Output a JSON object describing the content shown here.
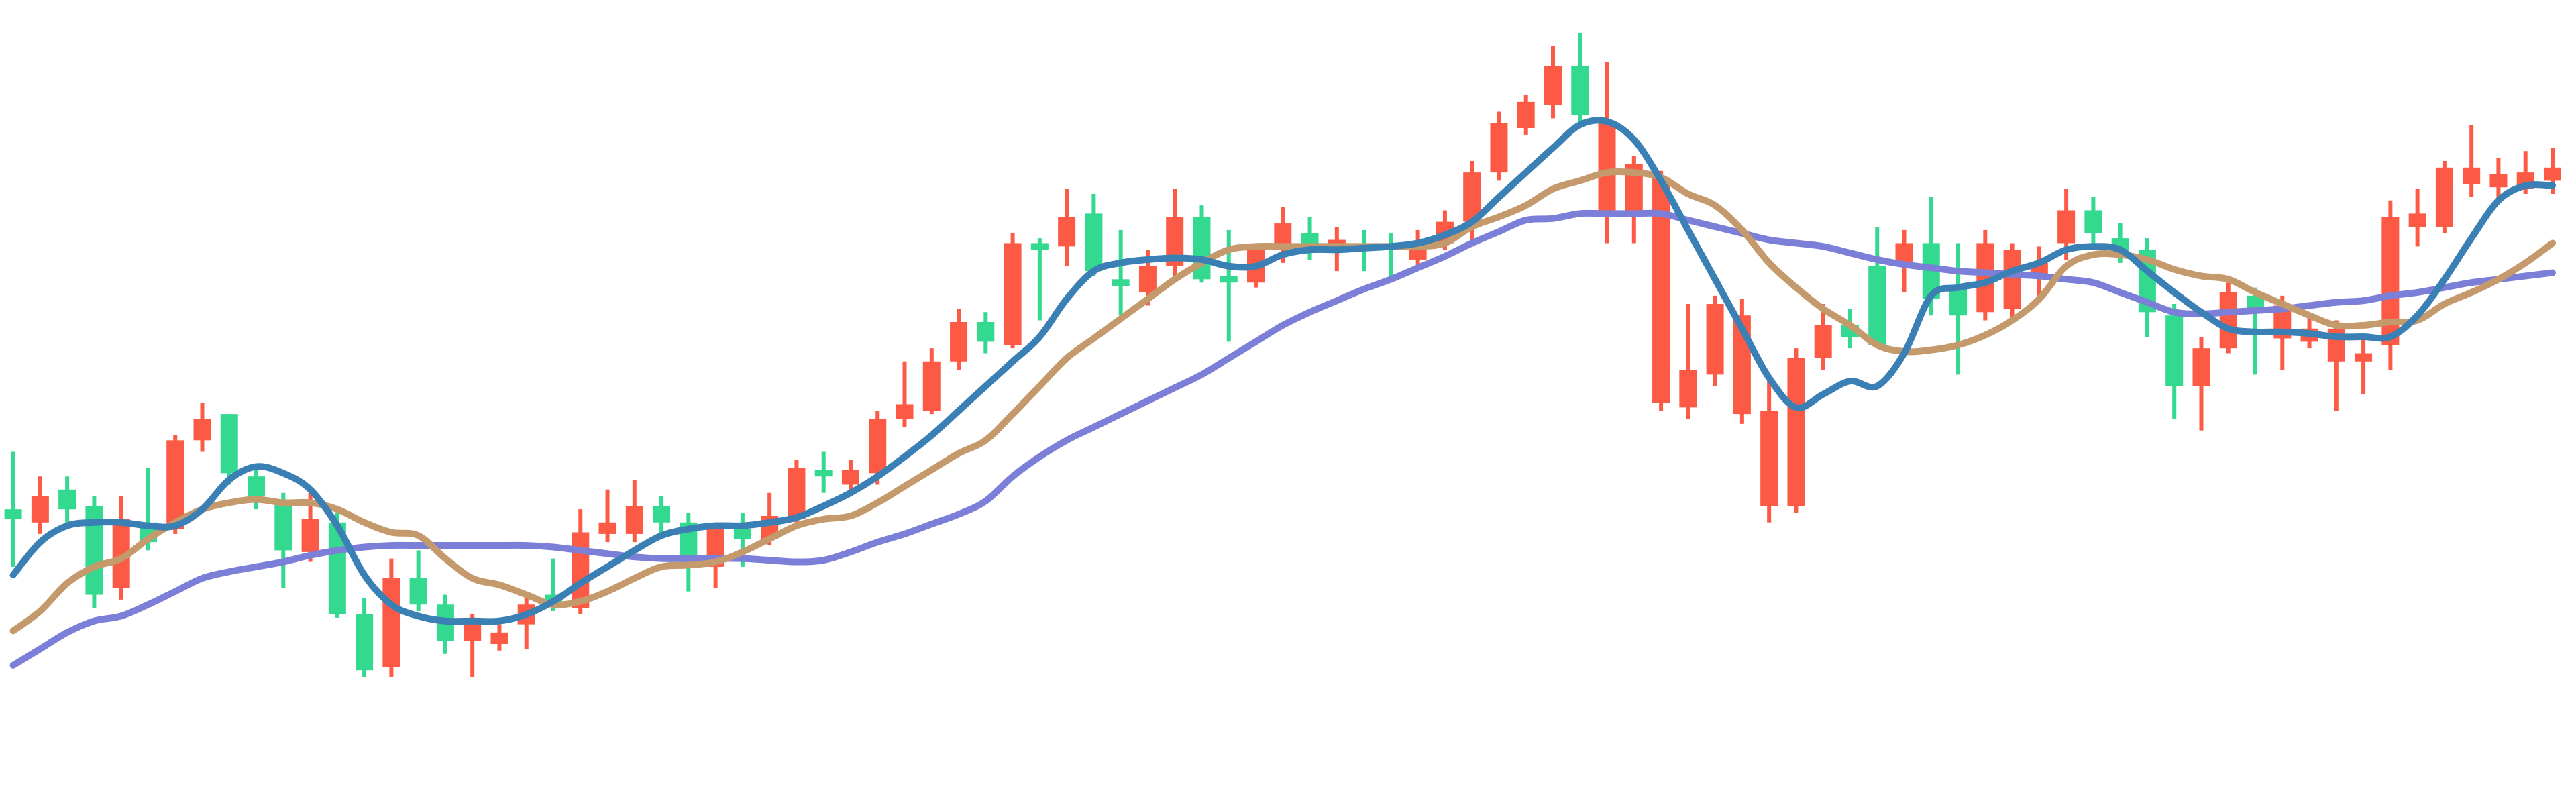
{
  "chart_data": {
    "type": "candlestick",
    "ylim": [
      0,
      490
    ],
    "up_color": "#33d98f",
    "down_color": "#fd5a45",
    "open": [
      174,
      188,
      180,
      128,
      174,
      160,
      222,
      235,
      202,
      188,
      155,
      174,
      116,
      82,
      138,
      122,
      100,
      112,
      105,
      122,
      122,
      166,
      172,
      182,
      172,
      145,
      168,
      162,
      176,
      205,
      200,
      204,
      235,
      244,
      270,
      294,
      282,
      342,
      338,
      358,
      325,
      316,
      328,
      358,
      320,
      318,
      338,
      354,
      340,
      344,
      338,
      338,
      342,
      355,
      385,
      415,
      428,
      450,
      420,
      415,
      390,
      382,
      265,
      305,
      298,
      240,
      272,
      292,
      285,
      280,
      342,
      308,
      298,
      342,
      338,
      330,
      362,
      348,
      338,
      300,
      255,
      278,
      312,
      300,
      304,
      290,
      290,
      275,
      358,
      360,
      388,
      388,
      384,
      385,
      388
    ],
    "high": [
      215,
      200,
      200,
      188,
      188,
      205,
      225,
      245,
      238,
      205,
      190,
      190,
      178,
      126,
      150,
      155,
      128,
      116,
      110,
      128,
      150,
      180,
      192,
      198,
      188,
      178,
      172,
      178,
      190,
      210,
      215,
      210,
      240,
      270,
      278,
      302,
      300,
      348,
      345,
      375,
      372,
      350,
      338,
      375,
      365,
      350,
      342,
      364,
      358,
      352,
      350,
      348,
      350,
      362,
      392,
      422,
      432,
      462,
      470,
      452,
      395,
      386,
      305,
      310,
      308,
      260,
      278,
      305,
      302,
      352,
      350,
      370,
      342,
      350,
      342,
      340,
      375,
      370,
      354,
      345,
      305,
      285,
      318,
      315,
      310,
      298,
      295,
      285,
      368,
      375,
      392,
      414,
      394,
      398,
      400
    ],
    "low": [
      145,
      165,
      172,
      120,
      125,
      155,
      165,
      215,
      195,
      180,
      132,
      148,
      114,
      78,
      78,
      118,
      92,
      78,
      94,
      95,
      118,
      116,
      160,
      160,
      164,
      130,
      132,
      145,
      158,
      172,
      190,
      190,
      195,
      230,
      238,
      265,
      275,
      278,
      295,
      328,
      322,
      298,
      304,
      322,
      318,
      282,
      315,
      330,
      332,
      325,
      325,
      322,
      328,
      338,
      340,
      380,
      408,
      418,
      415,
      342,
      342,
      240,
      235,
      255,
      232,
      172,
      178,
      265,
      278,
      278,
      312,
      298,
      262,
      295,
      295,
      310,
      332,
      340,
      330,
      285,
      235,
      228,
      275,
      262,
      265,
      278,
      240,
      250,
      265,
      340,
      348,
      370,
      368,
      372,
      372
    ],
    "close": [
      180,
      172,
      192,
      182,
      132,
      172,
      168,
      222,
      238,
      200,
      185,
      154,
      172,
      116,
      84,
      138,
      122,
      100,
      98,
      110,
      128,
      120,
      165,
      165,
      182,
      172,
      145,
      168,
      162,
      174,
      204,
      195,
      202,
      235,
      240,
      270,
      294,
      280,
      342,
      340,
      360,
      320,
      312,
      328,
      358,
      322,
      318,
      338,
      348,
      338,
      340,
      340,
      332,
      342,
      355,
      385,
      412,
      426,
      450,
      360,
      358,
      245,
      242,
      262,
      238,
      182,
      182,
      272,
      292,
      328,
      328,
      342,
      315,
      300,
      302,
      322,
      342,
      362,
      345,
      338,
      298,
      255,
      278,
      310,
      284,
      282,
      270,
      270,
      280,
      352,
      352,
      378,
      376,
      375,
      380
    ],
    "lines": [
      {
        "color": "#7c7fd8",
        "values": [
          85,
          95,
          105,
          112,
          115,
          122,
          130,
          138,
          142,
          145,
          148,
          152,
          155,
          157,
          158,
          158,
          158,
          158,
          158,
          158,
          157,
          155,
          153,
          151,
          150,
          150,
          150,
          150,
          149,
          148,
          149,
          154,
          160,
          165,
          171,
          177,
          185,
          200,
          212,
          222,
          230,
          238,
          246,
          254,
          262,
          272,
          282,
          292,
          300,
          307,
          314,
          320,
          327,
          334,
          342,
          349,
          356,
          357,
          360,
          360,
          360,
          360,
          356,
          352,
          348,
          344,
          342,
          340,
          336,
          332,
          329,
          327,
          325,
          324,
          323,
          322,
          320,
          318,
          312,
          306,
          300,
          299,
          300,
          301,
          302,
          304,
          306,
          307,
          310,
          312,
          315,
          318,
          320,
          322,
          324
        ]
      },
      {
        "color": "#c49a6c",
        "values": [
          106,
          118,
          135,
          145,
          150,
          162,
          172,
          180,
          184,
          186,
          184,
          184,
          180,
          172,
          166,
          164,
          150,
          138,
          134,
          128,
          122,
          124,
          130,
          138,
          145,
          146,
          148,
          154,
          162,
          170,
          174,
          176,
          184,
          194,
          204,
          214,
          222,
          238,
          255,
          272,
          284,
          296,
          308,
          320,
          330,
          338,
          340,
          340,
          340,
          340,
          340,
          340,
          340,
          342,
          352,
          358,
          365,
          375,
          380,
          385,
          385,
          382,
          372,
          365,
          350,
          330,
          315,
          302,
          292,
          280,
          276,
          277,
          280,
          286,
          295,
          308,
          328,
          335,
          335,
          332,
          326,
          322,
          320,
          312,
          305,
          298,
          292,
          292,
          294,
          295,
          305,
          312,
          320,
          330,
          342
        ]
      },
      {
        "color": "#3b80b4",
        "values": [
          140,
          160,
          170,
          172,
          172,
          170,
          170,
          180,
          198,
          206,
          202,
          192,
          170,
          140,
          122,
          115,
          112,
          112,
          112,
          116,
          124,
          135,
          145,
          155,
          164,
          168,
          170,
          170,
          172,
          175,
          182,
          190,
          200,
          212,
          225,
          240,
          255,
          270,
          285,
          308,
          325,
          330,
          332,
          333,
          332,
          328,
          328,
          335,
          338,
          338,
          339,
          340,
          342,
          347,
          355,
          370,
          385,
          400,
          414,
          416,
          405,
          380,
          350,
          320,
          290,
          260,
          242,
          250,
          258,
          255,
          275,
          310,
          315,
          318,
          325,
          330,
          338,
          340,
          338,
          325,
          312,
          300,
          290,
          288,
          288,
          287,
          285,
          285,
          285,
          298,
          320,
          345,
          368,
          377,
          377
        ]
      }
    ]
  }
}
